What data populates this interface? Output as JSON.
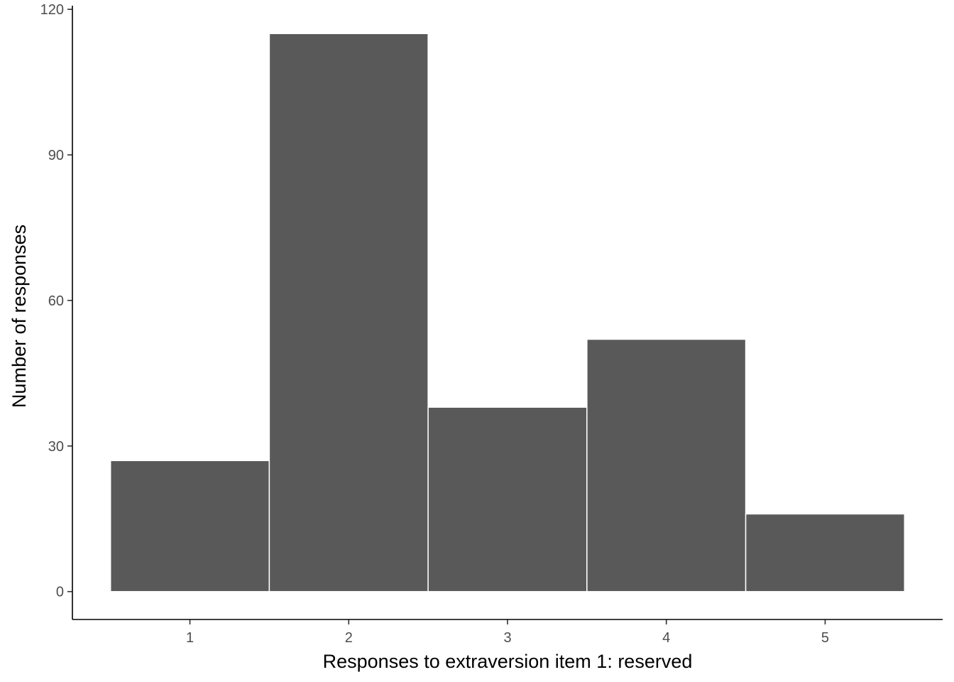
{
  "chart_data": {
    "type": "bar",
    "title": "",
    "categories": [
      "1",
      "2",
      "3",
      "4",
      "5"
    ],
    "values": [
      27,
      115,
      38,
      52,
      16
    ],
    "xlabel": "Responses to extraversion item 1: reserved",
    "ylabel": "Number of responses",
    "ylim": [
      -5.75,
      120.75
    ],
    "xlim": [
      0.26,
      5.74
    ],
    "y_ticks": [
      "0",
      "30",
      "60",
      "90",
      "120"
    ],
    "x_ticks": [
      "1",
      "2",
      "3",
      "4",
      "5"
    ],
    "grid": false,
    "bar_color": "#595959",
    "bar_edge_color": "#ffffff",
    "axis_color": "#000000",
    "tick_label_color": "#4d4d4d"
  }
}
